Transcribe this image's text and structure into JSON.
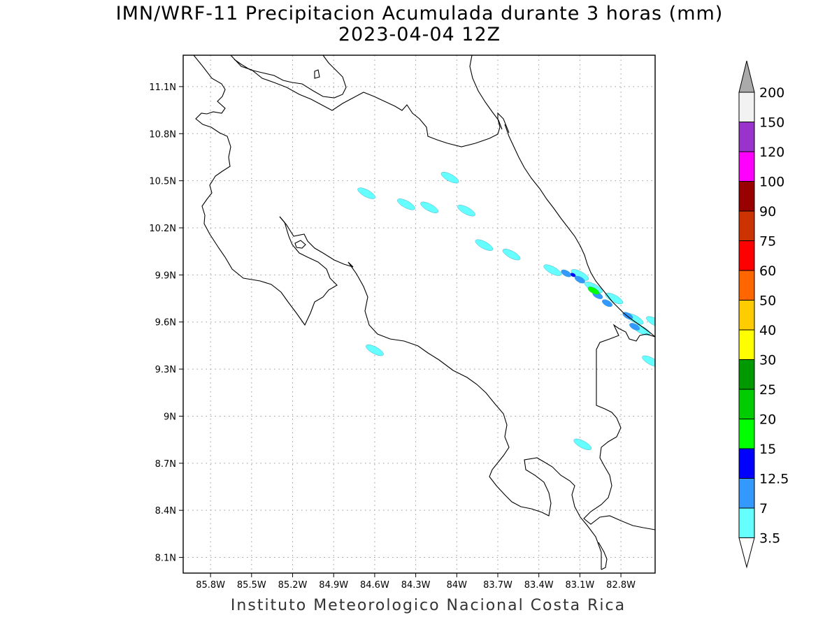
{
  "title": "IMN/WRF-11 Precipitacion Acumulada durante 3 horas (mm)",
  "subtitle": "2023-04-04 12Z",
  "credit": "Instituto Meteorologico Nacional Costa Rica",
  "map": {
    "lon_range": [
      -86.0,
      -82.55
    ],
    "lat_range": [
      8.0,
      11.3
    ],
    "lon_ticks": [
      {
        "value": -85.8,
        "label": "85.8W"
      },
      {
        "value": -85.5,
        "label": "85.5W"
      },
      {
        "value": -85.2,
        "label": "85.2W"
      },
      {
        "value": -84.9,
        "label": "84.9W"
      },
      {
        "value": -84.6,
        "label": "84.6W"
      },
      {
        "value": -84.3,
        "label": "84.3W"
      },
      {
        "value": -84.0,
        "label": "84W"
      },
      {
        "value": -83.7,
        "label": "83.7W"
      },
      {
        "value": -83.4,
        "label": "83.4W"
      },
      {
        "value": -83.1,
        "label": "83.1W"
      },
      {
        "value": -82.8,
        "label": "82.8W"
      }
    ],
    "lat_ticks": [
      {
        "value": 8.1,
        "label": "8.1N"
      },
      {
        "value": 8.4,
        "label": "8.4N"
      },
      {
        "value": 8.7,
        "label": "8.7N"
      },
      {
        "value": 9.0,
        "label": "9N"
      },
      {
        "value": 9.3,
        "label": "9.3N"
      },
      {
        "value": 9.6,
        "label": "9.6N"
      },
      {
        "value": 9.9,
        "label": "9.9N"
      },
      {
        "value": 10.2,
        "label": "10.2N"
      },
      {
        "value": 10.5,
        "label": "10.5N"
      },
      {
        "value": 10.8,
        "label": "10.8N"
      },
      {
        "value": 11.1,
        "label": "11.1N"
      }
    ],
    "grid": true
  },
  "colorbar": {
    "levels": [
      {
        "label": "3.5",
        "color": "#66ffff"
      },
      {
        "label": "7",
        "color": "#3399ff"
      },
      {
        "label": "12.5",
        "color": "#0000ff"
      },
      {
        "label": "15",
        "color": "#00ff00"
      },
      {
        "label": "20",
        "color": "#00cc00"
      },
      {
        "label": "25",
        "color": "#009900"
      },
      {
        "label": "30",
        "color": "#ffff00"
      },
      {
        "label": "40",
        "color": "#ffcc00"
      },
      {
        "label": "50",
        "color": "#ff6600"
      },
      {
        "label": "60",
        "color": "#ff0000"
      },
      {
        "label": "75",
        "color": "#cc3300"
      },
      {
        "label": "90",
        "color": "#990000"
      },
      {
        "label": "100",
        "color": "#ff00ff"
      },
      {
        "label": "120",
        "color": "#9933cc"
      },
      {
        "label": "150",
        "color": "#f2f2f2"
      },
      {
        "label": "200",
        "color": "#aaaaaa"
      }
    ],
    "below_color": "#ffffff",
    "above_color": "#aaaaaa"
  },
  "precipitation": {
    "light": [
      [
        -84.66,
        10.42
      ],
      [
        -84.37,
        10.35
      ],
      [
        -84.2,
        10.33
      ],
      [
        -83.93,
        10.31
      ],
      [
        -84.05,
        10.52
      ],
      [
        -83.8,
        10.09
      ],
      [
        -83.6,
        10.03
      ],
      [
        -83.3,
        9.93
      ],
      [
        -83.1,
        9.9
      ],
      [
        -83.0,
        9.82
      ],
      [
        -82.85,
        9.75
      ],
      [
        -82.7,
        9.62
      ],
      [
        -82.65,
        9.55
      ],
      [
        -82.55,
        9.6
      ],
      [
        -84.6,
        9.42
      ],
      [
        -83.08,
        8.82
      ],
      [
        -82.58,
        9.35
      ]
    ],
    "medium": [
      [
        -83.2,
        9.91
      ],
      [
        -83.1,
        9.87
      ],
      [
        -82.97,
        9.77
      ],
      [
        -82.9,
        9.72
      ],
      [
        -82.75,
        9.64
      ],
      [
        -82.7,
        9.57
      ]
    ],
    "heavy": [
      [
        -83.15,
        9.9
      ],
      [
        -82.98,
        9.79
      ]
    ],
    "very_heavy": [
      [
        -83.0,
        9.8
      ]
    ]
  }
}
